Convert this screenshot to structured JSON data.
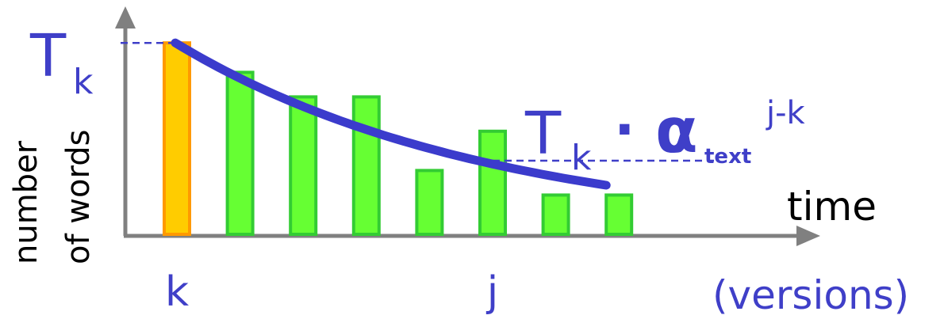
{
  "chart_data": {
    "type": "bar",
    "categories": [
      "k",
      "",
      "",
      "",
      "",
      "j",
      "",
      ""
    ],
    "values": [
      7.8,
      6.6,
      5.6,
      5.6,
      2.6,
      4.2,
      1.6,
      1.6
    ],
    "highlight_index": 0,
    "ylim": [
      0,
      8
    ],
    "grid": false,
    "legend": "none",
    "ylabel_line1": "number",
    "ylabel_line2": "of words",
    "xlabel": "time",
    "xlabel_sub": "(versions)",
    "annotations": {
      "tk_main": "T",
      "tk_sub": "k",
      "formula_main": "T",
      "formula_sub": "k",
      "formula_dot": "·",
      "formula_alpha": "α",
      "formula_alpha_sub": "text",
      "formula_exp": "j-k"
    },
    "decay_curve": {
      "start_value": 7.8,
      "end_value": 2.0,
      "value_at_j": 3.0
    },
    "colors": {
      "bar": "#66ff33",
      "bar_stroke": "#33cc33",
      "highlight": "#ffcc00",
      "highlight_stroke": "#ff9900",
      "curve": "#3b3bcc",
      "axis": "#808080",
      "annotation": "#3f3fc8"
    }
  }
}
